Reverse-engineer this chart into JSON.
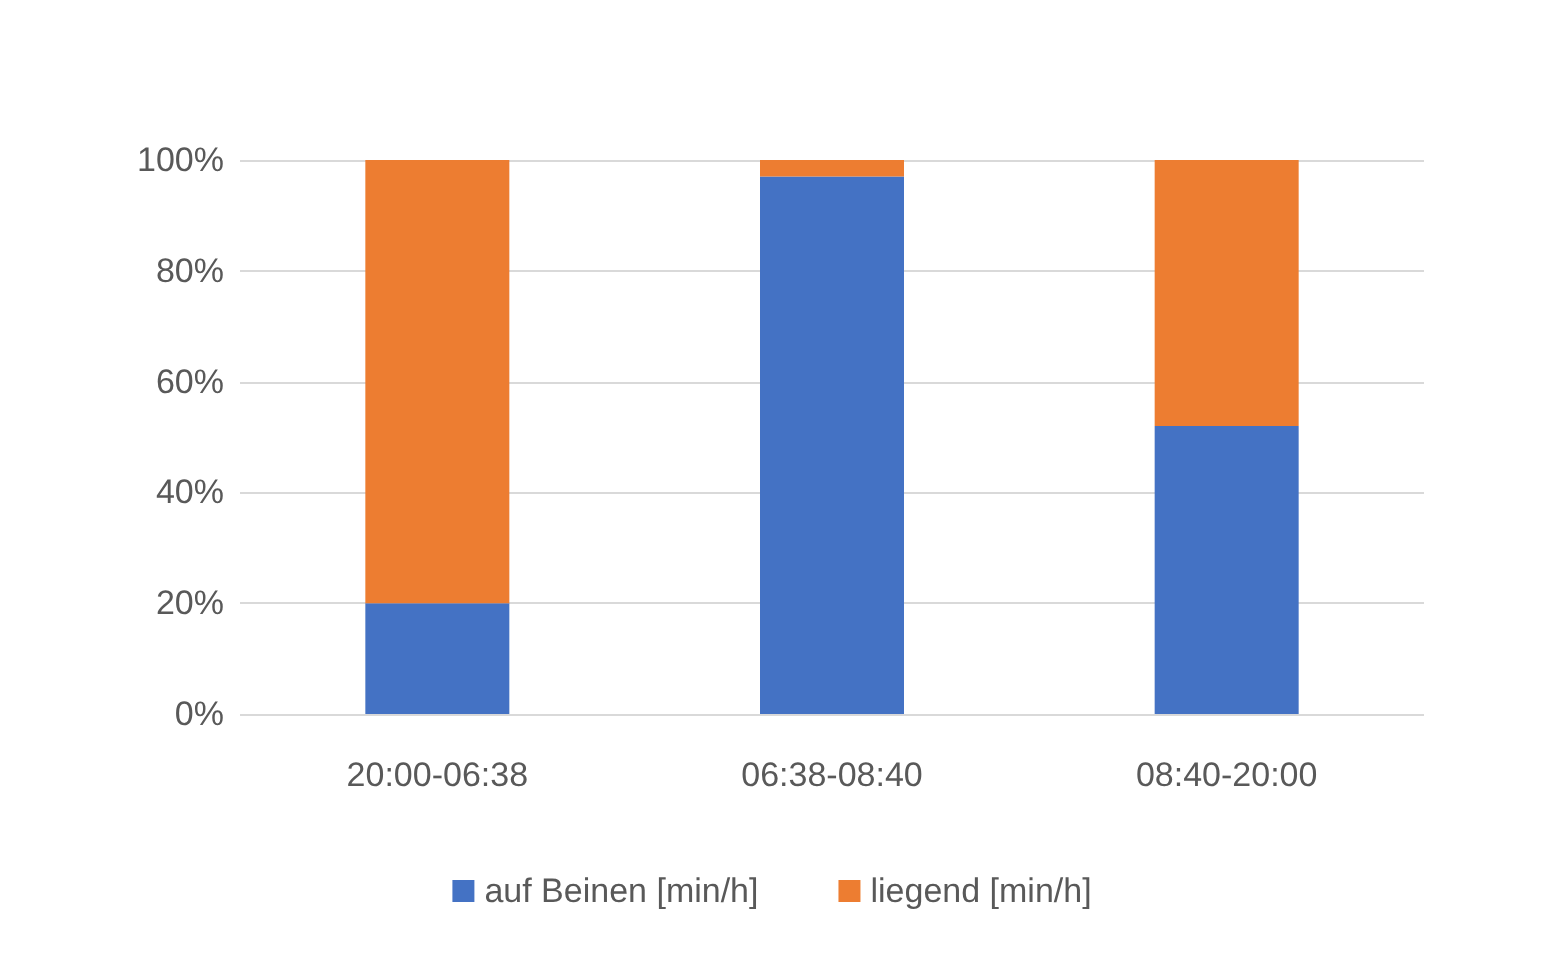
{
  "chart_data": {
    "type": "bar",
    "stacked": true,
    "categories": [
      "20:00-06:38",
      "06:38-08:40",
      "08:40-20:00"
    ],
    "series": [
      {
        "name": "auf Beinen [min/h]",
        "color": "#4472c4",
        "values": [
          20,
          97,
          52
        ]
      },
      {
        "name": "liegend [min/h]",
        "color": "#ed7d31",
        "values": [
          80,
          3,
          48
        ]
      }
    ],
    "ylim": [
      0,
      100
    ],
    "yticks": [
      {
        "value": 0,
        "label": "0%"
      },
      {
        "value": 20,
        "label": "20%"
      },
      {
        "value": 40,
        "label": "40%"
      },
      {
        "value": 60,
        "label": "60%"
      },
      {
        "value": 80,
        "label": "80%"
      },
      {
        "value": 100,
        "label": "100%"
      }
    ],
    "grid": "y",
    "legend": "bottom"
  }
}
